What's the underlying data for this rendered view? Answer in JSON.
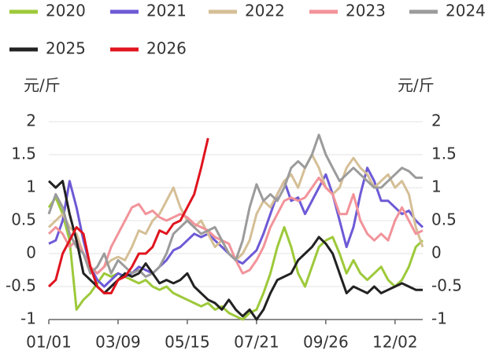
{
  "chart_data": {
    "type": "line",
    "y_label": "元/斤",
    "y2_label": "元/斤",
    "categories": [
      "01/01",
      null,
      null,
      null,
      null,
      null,
      null,
      null,
      null,
      null,
      "03/09",
      null,
      null,
      null,
      null,
      null,
      null,
      null,
      null,
      null,
      "05/15",
      null,
      null,
      null,
      null,
      null,
      null,
      null,
      null,
      null,
      "07/21",
      null,
      null,
      null,
      null,
      null,
      null,
      null,
      null,
      null,
      "09/26",
      null,
      null,
      null,
      null,
      null,
      null,
      null,
      null,
      null,
      "12/02",
      null,
      null,
      null,
      null
    ],
    "ylim": [
      -1,
      2
    ],
    "yticks": [
      2,
      1.5,
      1,
      0.5,
      0,
      -0.5,
      -1
    ],
    "y2lim": [
      -1,
      2
    ],
    "y2ticks": [
      2,
      1.5,
      1,
      0.5,
      0,
      -0.5,
      -1
    ],
    "grid": true,
    "legend": "top",
    "series": [
      {
        "name": "2020",
        "color": "#9dc93a",
        "values": [
          0.7,
          0.85,
          0.6,
          0.2,
          -0.85,
          -0.7,
          -0.6,
          -0.45,
          -0.3,
          -0.35,
          -0.3,
          -0.35,
          -0.4,
          -0.45,
          -0.4,
          -0.5,
          -0.55,
          -0.5,
          -0.6,
          -0.65,
          -0.7,
          -0.75,
          -0.8,
          -0.75,
          -0.85,
          -0.8,
          -0.9,
          -0.95,
          -1.0,
          -0.9,
          -0.85,
          -0.6,
          -0.3,
          0.1,
          0.4,
          0.1,
          -0.3,
          -0.5,
          -0.2,
          0.1,
          0.2,
          0.25,
          0.0,
          -0.3,
          -0.1,
          -0.3,
          -0.4,
          -0.3,
          -0.2,
          -0.4,
          -0.5,
          -0.4,
          -0.2,
          0.1,
          0.2
        ]
      },
      {
        "name": "2021",
        "color": "#6d5ad6",
        "values": [
          0.15,
          0.2,
          0.5,
          1.1,
          0.7,
          0.2,
          -0.2,
          -0.4,
          -0.5,
          -0.4,
          -0.3,
          -0.35,
          -0.3,
          -0.2,
          -0.25,
          -0.3,
          -0.2,
          -0.1,
          0.05,
          0.1,
          0.2,
          0.3,
          0.25,
          0.3,
          0.2,
          0.1,
          0.0,
          -0.1,
          -0.15,
          -0.05,
          0.05,
          0.3,
          0.6,
          0.9,
          1.1,
          0.8,
          0.85,
          0.6,
          0.8,
          1.0,
          1.2,
          0.9,
          0.5,
          0.1,
          0.4,
          0.9,
          1.3,
          1.1,
          0.8,
          0.8,
          0.7,
          0.6,
          0.65,
          0.5,
          0.4
        ]
      },
      {
        "name": "2022",
        "color": "#d5bf96",
        "values": [
          0.4,
          0.5,
          0.6,
          0.4,
          0.3,
          0.0,
          -0.2,
          -0.3,
          -0.2,
          -0.1,
          -0.05,
          -0.1,
          0.1,
          0.35,
          0.3,
          0.5,
          0.6,
          0.8,
          1.0,
          0.7,
          0.5,
          0.4,
          0.5,
          0.3,
          0.1,
          0.2,
          0.0,
          -0.1,
          0.0,
          0.2,
          0.6,
          0.8,
          0.7,
          0.9,
          1.1,
          1.2,
          1.0,
          1.3,
          1.5,
          1.3,
          1.0,
          0.9,
          1.0,
          1.3,
          1.45,
          1.3,
          1.2,
          1.0,
          1.1,
          1.2,
          1.0,
          1.1,
          0.9,
          0.4,
          0.1
        ]
      },
      {
        "name": "2023",
        "color": "#f2939a",
        "values": [
          0.3,
          0.4,
          0.3,
          0.1,
          0.2,
          0.0,
          -0.2,
          -0.3,
          -0.2,
          0.1,
          0.3,
          0.5,
          0.7,
          0.75,
          0.6,
          0.65,
          0.55,
          0.5,
          0.55,
          0.6,
          0.55,
          0.45,
          0.4,
          0.35,
          0.25,
          0.2,
          0.15,
          -0.1,
          -0.3,
          -0.25,
          -0.1,
          0.1,
          0.4,
          0.6,
          0.8,
          0.85,
          0.8,
          0.85,
          1.0,
          1.15,
          1.0,
          0.9,
          0.6,
          0.6,
          0.9,
          0.5,
          0.3,
          0.2,
          0.3,
          0.2,
          0.5,
          0.7,
          0.5,
          0.3,
          0.35
        ]
      },
      {
        "name": "2024",
        "color": "#9b9b9b",
        "values": [
          0.6,
          0.9,
          0.7,
          0.3,
          0.1,
          0.0,
          -0.3,
          -0.2,
          0.0,
          -0.3,
          -0.1,
          -0.2,
          -0.3,
          -0.25,
          -0.35,
          -0.3,
          -0.2,
          0.0,
          0.3,
          0.4,
          0.5,
          0.4,
          0.3,
          0.35,
          0.4,
          0.2,
          0.0,
          -0.1,
          0.2,
          0.7,
          1.05,
          0.8,
          0.9,
          0.8,
          1.0,
          1.3,
          1.4,
          1.3,
          1.5,
          1.8,
          1.5,
          1.3,
          1.1,
          1.2,
          1.3,
          1.2,
          1.1,
          1.0,
          1.0,
          1.1,
          1.2,
          1.3,
          1.25,
          1.15,
          1.15
        ]
      },
      {
        "name": "2025",
        "color": "#222222",
        "values": [
          1.1,
          1.0,
          1.1,
          0.6,
          0.2,
          -0.3,
          -0.4,
          -0.5,
          -0.6,
          -0.5,
          -0.4,
          -0.3,
          -0.35,
          -0.3,
          -0.15,
          -0.3,
          -0.45,
          -0.4,
          -0.45,
          -0.4,
          -0.3,
          -0.5,
          -0.6,
          -0.7,
          -0.75,
          -0.85,
          -0.7,
          -0.85,
          -0.95,
          -0.85,
          -1.0,
          -0.85,
          -0.6,
          -0.4,
          -0.35,
          -0.3,
          -0.1,
          0.0,
          0.1,
          0.25,
          0.15,
          0.0,
          -0.3,
          -0.6,
          -0.5,
          -0.55,
          -0.6,
          -0.5,
          -0.6,
          -0.55,
          -0.5,
          -0.45,
          -0.5,
          -0.55,
          -0.55
        ]
      },
      {
        "name": "2026",
        "color": "#e0141e",
        "values": [
          -0.5,
          -0.4,
          0.0,
          0.2,
          0.4,
          0.3,
          -0.2,
          -0.5,
          -0.6,
          -0.6,
          -0.4,
          -0.35,
          -0.2,
          0.0,
          0.0,
          0.1,
          0.35,
          0.3,
          0.45,
          0.5,
          0.7,
          0.9,
          1.3,
          1.75,
          null,
          null,
          null,
          null,
          null,
          null,
          null,
          null,
          null,
          null,
          null,
          null,
          null,
          null,
          null,
          null,
          null,
          null,
          null,
          null,
          null,
          null,
          null,
          null,
          null,
          null,
          null,
          null,
          null,
          null,
          null
        ]
      }
    ]
  }
}
